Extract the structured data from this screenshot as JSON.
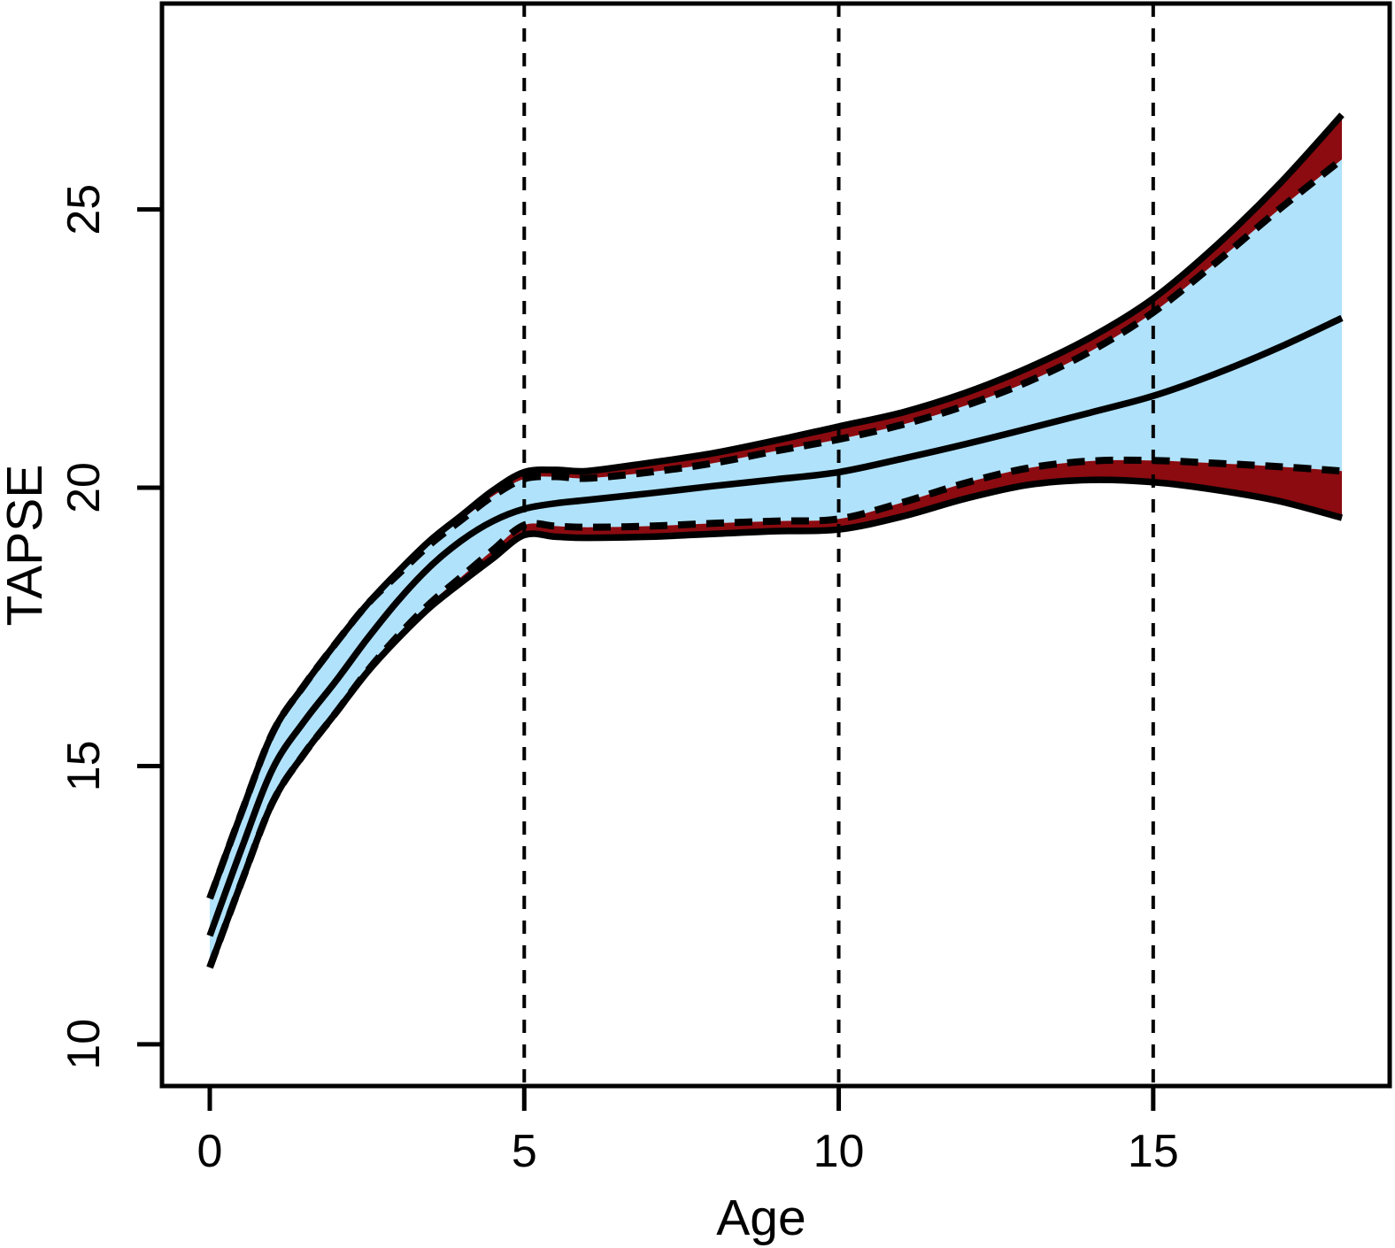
{
  "figure": {
    "background": "#ffffff",
    "description": "Centile curves of TAPSE versus Age with inner confidence band (light blue) and outer band (dark red) between solid and dashed boundary curves; dashed vertical reference lines at ages 5, 10 and 15."
  },
  "chart_data": {
    "type": "line",
    "title": "",
    "xlabel": "Age",
    "ylabel": "TAPSE",
    "x_ticks": [
      0,
      5,
      10,
      15
    ],
    "y_ticks": [
      10,
      15,
      20,
      25
    ],
    "x_range": [
      -0.76,
      18.76
    ],
    "y_range": [
      9.25,
      28.7
    ],
    "gridlines_at": [
      5,
      10,
      15
    ],
    "grid_style": "dashed-vertical",
    "legend": "none",
    "colors": {
      "band_inner": "#B0E2FB",
      "band_outer": "#8B0B10",
      "line": "#000000"
    },
    "x": [
      0,
      0.5,
      1,
      1.5,
      2,
      2.5,
      3,
      3.5,
      4,
      4.5,
      5,
      5.5,
      6,
      7,
      8,
      9,
      10,
      11,
      12,
      13,
      14,
      15,
      16,
      17,
      18
    ],
    "series": [
      {
        "name": "upper_solid",
        "label": "upper limit (solid)",
        "style": "solid",
        "color": "#000000",
        "values": [
          12.62,
          14.15,
          15.6,
          16.45,
          17.2,
          17.9,
          18.5,
          19.05,
          19.5,
          19.95,
          20.28,
          20.32,
          20.3,
          20.45,
          20.62,
          20.85,
          21.1,
          21.35,
          21.7,
          22.15,
          22.7,
          23.4,
          24.35,
          25.45,
          26.7
        ]
      },
      {
        "name": "upper_dashed",
        "label": "upper limit (dashed)",
        "style": "dashed",
        "color": "#000000",
        "values": [
          12.62,
          14.15,
          15.6,
          16.45,
          17.2,
          17.9,
          18.45,
          18.98,
          19.42,
          19.85,
          20.16,
          20.2,
          20.17,
          20.28,
          20.44,
          20.66,
          20.87,
          21.13,
          21.47,
          21.9,
          22.45,
          23.15,
          24.05,
          25.0,
          25.9
        ]
      },
      {
        "name": "median",
        "label": "median",
        "style": "solid",
        "color": "#000000",
        "values": [
          11.95,
          13.5,
          14.95,
          15.8,
          16.52,
          17.28,
          17.98,
          18.58,
          19.05,
          19.4,
          19.62,
          19.72,
          19.78,
          19.9,
          20.03,
          20.15,
          20.28,
          20.52,
          20.78,
          21.06,
          21.35,
          21.65,
          22.05,
          22.52,
          23.05
        ]
      },
      {
        "name": "lower_dashed",
        "label": "lower limit (dashed)",
        "style": "dashed",
        "color": "#000000",
        "values": [
          11.38,
          12.9,
          14.35,
          15.22,
          15.95,
          16.7,
          17.35,
          17.92,
          18.4,
          18.88,
          19.33,
          19.31,
          19.29,
          19.31,
          19.36,
          19.4,
          19.44,
          19.73,
          20.08,
          20.35,
          20.48,
          20.49,
          20.44,
          20.38,
          20.3
        ]
      },
      {
        "name": "lower_solid",
        "label": "lower limit (solid)",
        "style": "solid",
        "color": "#000000",
        "values": [
          11.38,
          12.9,
          14.35,
          15.22,
          15.95,
          16.68,
          17.3,
          17.85,
          18.3,
          18.73,
          19.15,
          19.12,
          19.1,
          19.12,
          19.17,
          19.22,
          19.25,
          19.48,
          19.8,
          20.05,
          20.14,
          20.1,
          19.96,
          19.76,
          19.46
        ]
      }
    ],
    "bands": [
      {
        "name": "inner-band",
        "between": [
          "upper_dashed",
          "lower_dashed"
        ],
        "color": "#B0E2FB"
      },
      {
        "name": "outer-band-upper",
        "between": [
          "upper_solid",
          "upper_dashed"
        ],
        "color": "#8B0B10"
      },
      {
        "name": "outer-band-lower",
        "between": [
          "lower_dashed",
          "lower_solid"
        ],
        "color": "#8B0B10"
      }
    ]
  }
}
